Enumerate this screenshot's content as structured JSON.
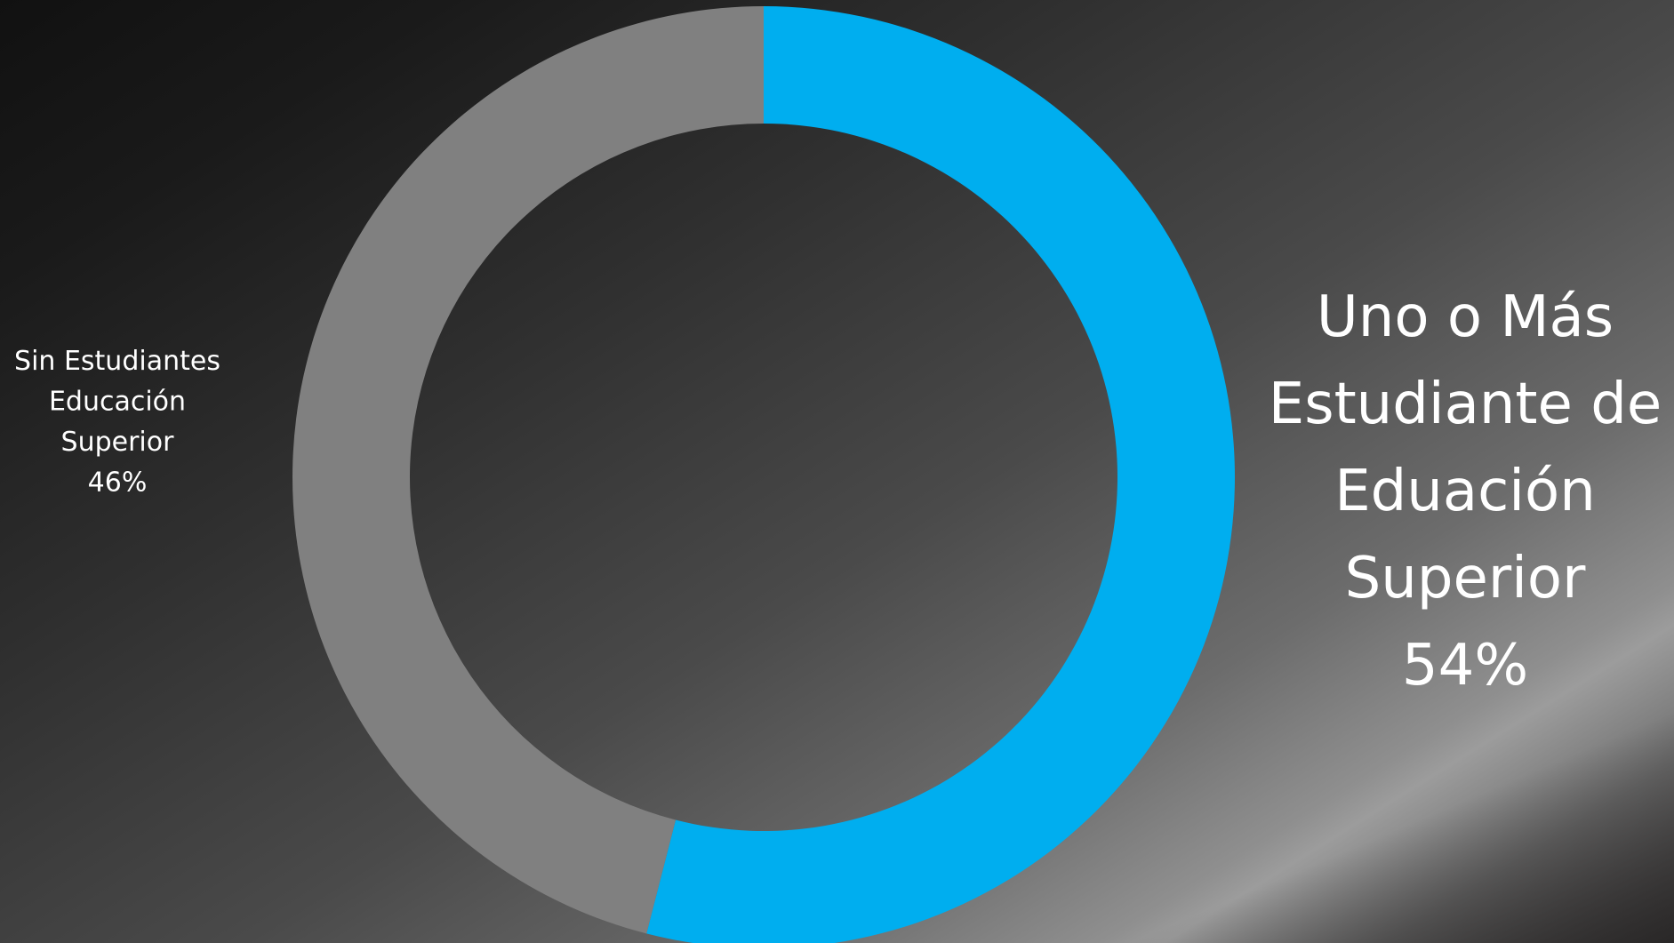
{
  "chart_data": {
    "type": "pie",
    "variant": "doughnut",
    "start_angle_deg": 0,
    "direction": "clockwise",
    "slices": [
      {
        "label_lines": [
          "Uno o Más",
          "Estudiante de",
          "Eduación",
          "Superior"
        ],
        "value": 54,
        "value_label": "54%",
        "color": "#00AEEF"
      },
      {
        "label_lines": [
          "Sin Estudiantes",
          "Educación",
          "Superior"
        ],
        "value": 46,
        "value_label": "46%",
        "color": "#808080"
      }
    ],
    "label_color": "#FFFFFF",
    "legend": "none"
  }
}
